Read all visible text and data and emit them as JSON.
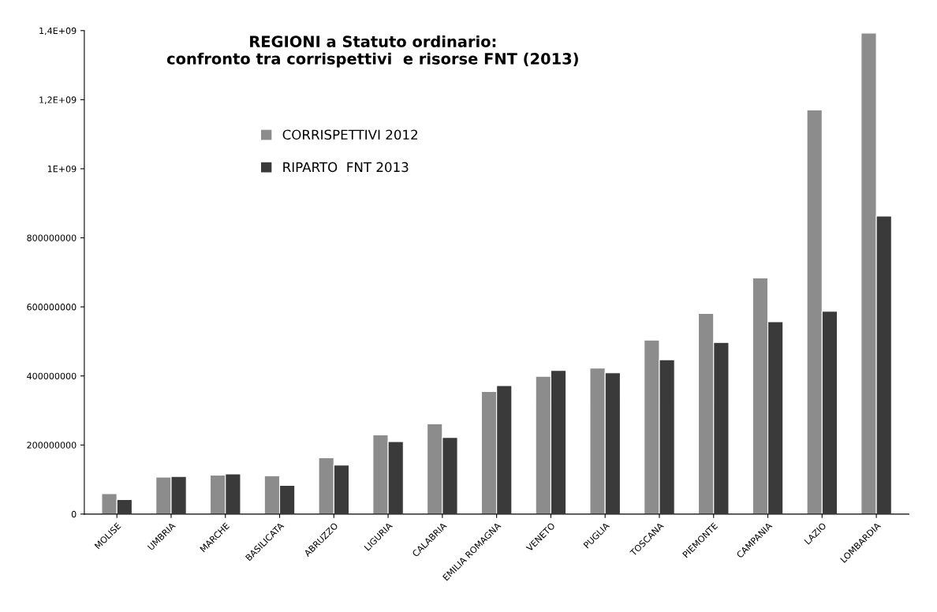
{
  "chart_data": {
    "type": "bar",
    "title": "REGIONI a Statuto ordinario:\nconfronto tra corrispettivi  e risorse FNT (2013)",
    "categories": [
      "MOLISE",
      "UMBRIA",
      "MARCHE",
      "BASILICATA",
      "ABRUZZO",
      "LIGURIA",
      "CALABRIA",
      "EMILIA ROMAGNA",
      "VENETO",
      "PUGLIA",
      "TOSCANA",
      "PIEMONTE",
      "CAMPANIA",
      "LAZIO",
      "LOMBARDIA"
    ],
    "series": [
      {
        "name": "CORRISPETTIVI 2012",
        "color": "#8c8c8c",
        "values": [
          59000000,
          107000000,
          113000000,
          111000000,
          163000000,
          229000000,
          261000000,
          355000000,
          399000000,
          423000000,
          504000000,
          581000000,
          684000000,
          1170000000,
          1393000000
        ]
      },
      {
        "name": "RIPARTO  FNT 2013",
        "color": "#3a3a3a",
        "values": [
          42000000,
          109000000,
          116000000,
          83000000,
          142000000,
          210000000,
          222000000,
          372000000,
          416000000,
          409000000,
          447000000,
          497000000,
          557000000,
          587000000,
          863000000
        ]
      }
    ],
    "ylim": [
      0,
      1400000000
    ],
    "yticks": [
      0,
      200000000,
      400000000,
      600000000,
      800000000,
      {
        "value": 1000000000,
        "label": "1E+09"
      },
      {
        "value": 1200000000,
        "label": "1,2E+09"
      },
      {
        "value": 1400000000,
        "label": "1,4E+09"
      }
    ],
    "grid": false,
    "legend": "top left"
  }
}
